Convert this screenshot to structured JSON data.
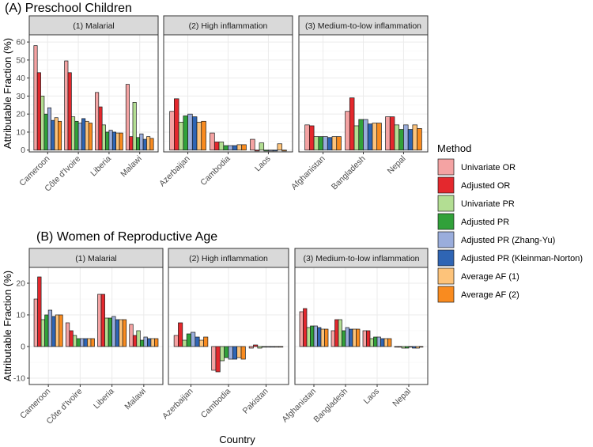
{
  "chart_data": {
    "type": "bar",
    "xlabel": "Country",
    "ylabel": "Attributable Fraction (%)",
    "legend": {
      "title": "Method",
      "position": "right",
      "items": [
        {
          "name": "Univariate OR",
          "color": "#F4A3A3"
        },
        {
          "name": "Adjusted OR",
          "color": "#E4282D"
        },
        {
          "name": "Univariate PR",
          "color": "#B3DE93"
        },
        {
          "name": "Adjusted PR",
          "color": "#31A13A"
        },
        {
          "name": "Adjusted PR (Zhang-Yu)",
          "color": "#9AADDC"
        },
        {
          "name": "Adjusted PR (Kleinman-Norton)",
          "color": "#2F65B4"
        },
        {
          "name": "Average AF (1)",
          "color": "#FDC37A"
        },
        {
          "name": "Average AF (2)",
          "color": "#F98B1F"
        }
      ]
    },
    "panels": [
      {
        "title": "(A) Preschool Children",
        "ylim": [
          -1,
          64
        ],
        "yticks": [
          0,
          10,
          20,
          30,
          40,
          50,
          60
        ],
        "facets": [
          {
            "label": "(1) Malarial",
            "countries": [
              {
                "name": "Cameroon",
                "values": [
                  58,
                  43,
                  30,
                  20,
                  23.5,
                  16.5,
                  18,
                  16
                ]
              },
              {
                "name": "Côte d'Ivoire",
                "values": [
                  49.5,
                  43,
                  18.5,
                  16,
                  15,
                  17.5,
                  16,
                  15
                ]
              },
              {
                "name": "Liberia",
                "values": [
                  32,
                  24,
                  14,
                  10,
                  11,
                  10,
                  9.5,
                  9.5
                ]
              },
              {
                "name": "Malawi",
                "values": [
                  36.5,
                  7.5,
                  26.5,
                  7,
                  9,
                  6,
                  7.5,
                  6.5
                ]
              }
            ]
          },
          {
            "label": "(2) High inflammation",
            "countries": [
              {
                "name": "Azerbaijan",
                "values": [
                  21.5,
                  28.5,
                  15.5,
                  19,
                  20,
                  18.5,
                  15.5,
                  16
                ]
              },
              {
                "name": "Cambodia",
                "values": [
                  9.5,
                  4.5,
                  4.5,
                  2.5,
                  2.5,
                  2.5,
                  3,
                  3
                ]
              },
              {
                "name": "Laos",
                "values": [
                  6,
                  -0.5,
                  4,
                  -0.5,
                  -0.5,
                  -0.5,
                  3.5,
                  -0.5
                ]
              }
            ]
          },
          {
            "label": "(3) Medium-to-low inflammation",
            "countries": [
              {
                "name": "Afghanistan",
                "values": [
                  14,
                  13.5,
                  7.5,
                  7.5,
                  7.5,
                  7,
                  7.5,
                  7.5
                ]
              },
              {
                "name": "Bangladesh",
                "values": [
                  21.5,
                  29,
                  13.5,
                  17,
                  17,
                  14.5,
                  15,
                  15
                ]
              },
              {
                "name": "Nepal",
                "values": [
                  18.5,
                  18.5,
                  14,
                  11.5,
                  14,
                  11.5,
                  14,
                  12
                ]
              }
            ]
          }
        ]
      },
      {
        "title": "(B) Women of Reproductive Age",
        "ylim": [
          -12,
          25
        ],
        "yticks": [
          -10,
          0,
          10,
          20
        ],
        "facets": [
          {
            "label": "(1) Malarial",
            "countries": [
              {
                "name": "Cameroon",
                "values": [
                  15,
                  22,
                  8.5,
                  10,
                  11.5,
                  9.5,
                  10,
                  10
                ]
              },
              {
                "name": "Côte d'Ivoire",
                "values": [
                  7.5,
                  5,
                  3.5,
                  2.5,
                  2.5,
                  2.5,
                  2.5,
                  2.5
                ]
              },
              {
                "name": "Liberia",
                "values": [
                  16.5,
                  16.5,
                  9,
                  9,
                  9.5,
                  8.5,
                  8.5,
                  8.5
                ]
              },
              {
                "name": "Malawi",
                "values": [
                  7,
                  3.5,
                  5,
                  2,
                  3,
                  2.5,
                  2.5,
                  2.5
                ]
              }
            ]
          },
          {
            "label": "(2) High inflammation",
            "countries": [
              {
                "name": "Azerbaijan",
                "values": [
                  3.5,
                  7.5,
                  2,
                  4,
                  4.5,
                  3,
                  2,
                  3
                ]
              },
              {
                "name": "Cambodia",
                "values": [
                  -7.5,
                  -8,
                  -4.5,
                  -3.5,
                  -4,
                  -4,
                  -3.5,
                  -4
                ]
              },
              {
                "name": "Pakistan",
                "values": [
                  -0.5,
                  0.5,
                  -0.5,
                  0,
                  0,
                  0,
                  0,
                  0
                ]
              }
            ]
          },
          {
            "label": "(3) Medium-to-low inflammation",
            "countries": [
              {
                "name": "Afghanistan",
                "values": [
                  11,
                  12,
                  6,
                  6.5,
                  6.5,
                  6,
                  5.5,
                  5.5
                ]
              },
              {
                "name": "Bangladesh",
                "values": [
                  5,
                  8.5,
                  8.5,
                  5,
                  6,
                  5.5,
                  5.5,
                  5.5
                ]
              },
              {
                "name": "Laos",
                "values": [
                  5,
                  5,
                  2.5,
                  3,
                  3,
                  2.5,
                  2.5,
                  2.5
                ]
              },
              {
                "name": "Nepal",
                "values": [
                  0,
                  0,
                  -0.5,
                  -0.5,
                  0,
                  -0.5,
                  -0.5,
                  0
                ]
              }
            ]
          }
        ]
      }
    ]
  }
}
